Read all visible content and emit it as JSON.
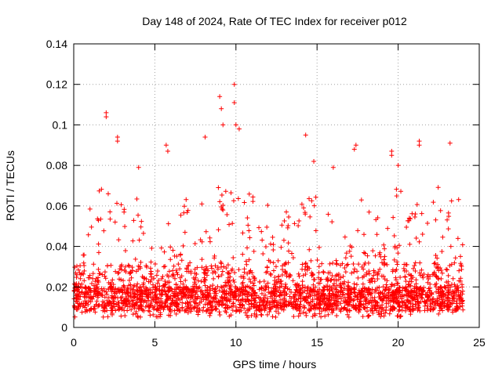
{
  "chart_data": {
    "type": "scatter",
    "title": "Day 148 of 2024, Rate Of TEC Index for receiver p012",
    "xlabel": "GPS time / hours",
    "ylabel": "ROTI / TECUs",
    "xlim": [
      0,
      25
    ],
    "ylim": [
      0,
      0.14
    ],
    "xticks": [
      0,
      5,
      10,
      15,
      20,
      25
    ],
    "xtick_labels": [
      "0",
      "5",
      "10",
      "15",
      "20",
      "25"
    ],
    "yticks": [
      0,
      0.02,
      0.04,
      0.06,
      0.08,
      0.1,
      0.12,
      0.14
    ],
    "ytick_labels": [
      "0",
      "0.02",
      "0.04",
      "0.06",
      "0.08",
      "0.1",
      "0.12",
      "0.14"
    ],
    "grid": true,
    "marker": "+",
    "color": "#ff0000",
    "series": [
      {
        "name": "ROTI",
        "x_range": [
          0,
          24
        ],
        "baseline_min": 0.005,
        "baseline_typical": [
          0.008,
          0.02
        ],
        "notable_points": [
          {
            "x": 2.0,
            "y": 0.106
          },
          {
            "x": 2.0,
            "y": 0.104
          },
          {
            "x": 2.7,
            "y": 0.094
          },
          {
            "x": 2.7,
            "y": 0.092
          },
          {
            "x": 4.0,
            "y": 0.079
          },
          {
            "x": 5.7,
            "y": 0.09
          },
          {
            "x": 5.8,
            "y": 0.087
          },
          {
            "x": 8.1,
            "y": 0.094
          },
          {
            "x": 9.0,
            "y": 0.114
          },
          {
            "x": 9.1,
            "y": 0.108
          },
          {
            "x": 9.2,
            "y": 0.1
          },
          {
            "x": 9.9,
            "y": 0.12
          },
          {
            "x": 9.9,
            "y": 0.111
          },
          {
            "x": 10.0,
            "y": 0.1
          },
          {
            "x": 10.2,
            "y": 0.098
          },
          {
            "x": 14.3,
            "y": 0.095
          },
          {
            "x": 14.8,
            "y": 0.082
          },
          {
            "x": 17.4,
            "y": 0.09
          },
          {
            "x": 17.3,
            "y": 0.088
          },
          {
            "x": 19.6,
            "y": 0.087
          },
          {
            "x": 19.6,
            "y": 0.085
          },
          {
            "x": 21.3,
            "y": 0.092
          },
          {
            "x": 21.3,
            "y": 0.09
          },
          {
            "x": 23.2,
            "y": 0.091
          },
          {
            "x": 20.0,
            "y": 0.08
          },
          {
            "x": 16.0,
            "y": 0.079
          }
        ],
        "envelope": [
          {
            "x": 0.0,
            "peak": 0.032
          },
          {
            "x": 0.5,
            "peak": 0.032
          },
          {
            "x": 0.8,
            "peak": 0.048
          },
          {
            "x": 1.0,
            "peak": 0.07
          },
          {
            "x": 1.5,
            "peak": 0.068
          },
          {
            "x": 2.0,
            "peak": 0.08
          },
          {
            "x": 2.5,
            "peak": 0.066
          },
          {
            "x": 2.8,
            "peak": 0.07
          },
          {
            "x": 3.2,
            "peak": 0.066
          },
          {
            "x": 3.6,
            "peak": 0.05
          },
          {
            "x": 4.0,
            "peak": 0.078
          },
          {
            "x": 4.5,
            "peak": 0.04
          },
          {
            "x": 5.0,
            "peak": 0.04
          },
          {
            "x": 5.8,
            "peak": 0.07
          },
          {
            "x": 6.3,
            "peak": 0.046
          },
          {
            "x": 7.0,
            "peak": 0.069
          },
          {
            "x": 7.5,
            "peak": 0.05
          },
          {
            "x": 8.0,
            "peak": 0.066
          },
          {
            "x": 8.5,
            "peak": 0.06
          },
          {
            "x": 9.0,
            "peak": 0.085
          },
          {
            "x": 9.5,
            "peak": 0.062
          },
          {
            "x": 10.0,
            "peak": 0.085
          },
          {
            "x": 10.5,
            "peak": 0.078
          },
          {
            "x": 11.0,
            "peak": 0.066
          },
          {
            "x": 11.5,
            "peak": 0.058
          },
          {
            "x": 12.0,
            "peak": 0.063
          },
          {
            "x": 12.5,
            "peak": 0.033
          },
          {
            "x": 13.0,
            "peak": 0.064
          },
          {
            "x": 13.5,
            "peak": 0.061
          },
          {
            "x": 14.0,
            "peak": 0.065
          },
          {
            "x": 14.5,
            "peak": 0.075
          },
          {
            "x": 15.0,
            "peak": 0.065
          },
          {
            "x": 15.5,
            "peak": 0.045
          },
          {
            "x": 16.0,
            "peak": 0.078
          },
          {
            "x": 16.5,
            "peak": 0.043
          },
          {
            "x": 17.0,
            "peak": 0.06
          },
          {
            "x": 17.5,
            "peak": 0.07
          },
          {
            "x": 18.0,
            "peak": 0.057
          },
          {
            "x": 18.5,
            "peak": 0.06
          },
          {
            "x": 19.0,
            "peak": 0.052
          },
          {
            "x": 19.5,
            "peak": 0.078
          },
          {
            "x": 20.0,
            "peak": 0.08
          },
          {
            "x": 20.5,
            "peak": 0.063
          },
          {
            "x": 21.0,
            "peak": 0.06
          },
          {
            "x": 21.5,
            "peak": 0.067
          },
          {
            "x": 22.0,
            "peak": 0.07
          },
          {
            "x": 22.5,
            "peak": 0.07
          },
          {
            "x": 23.0,
            "peak": 0.058
          },
          {
            "x": 23.5,
            "peak": 0.068
          },
          {
            "x": 24.0,
            "peak": 0.068
          }
        ]
      }
    ]
  }
}
